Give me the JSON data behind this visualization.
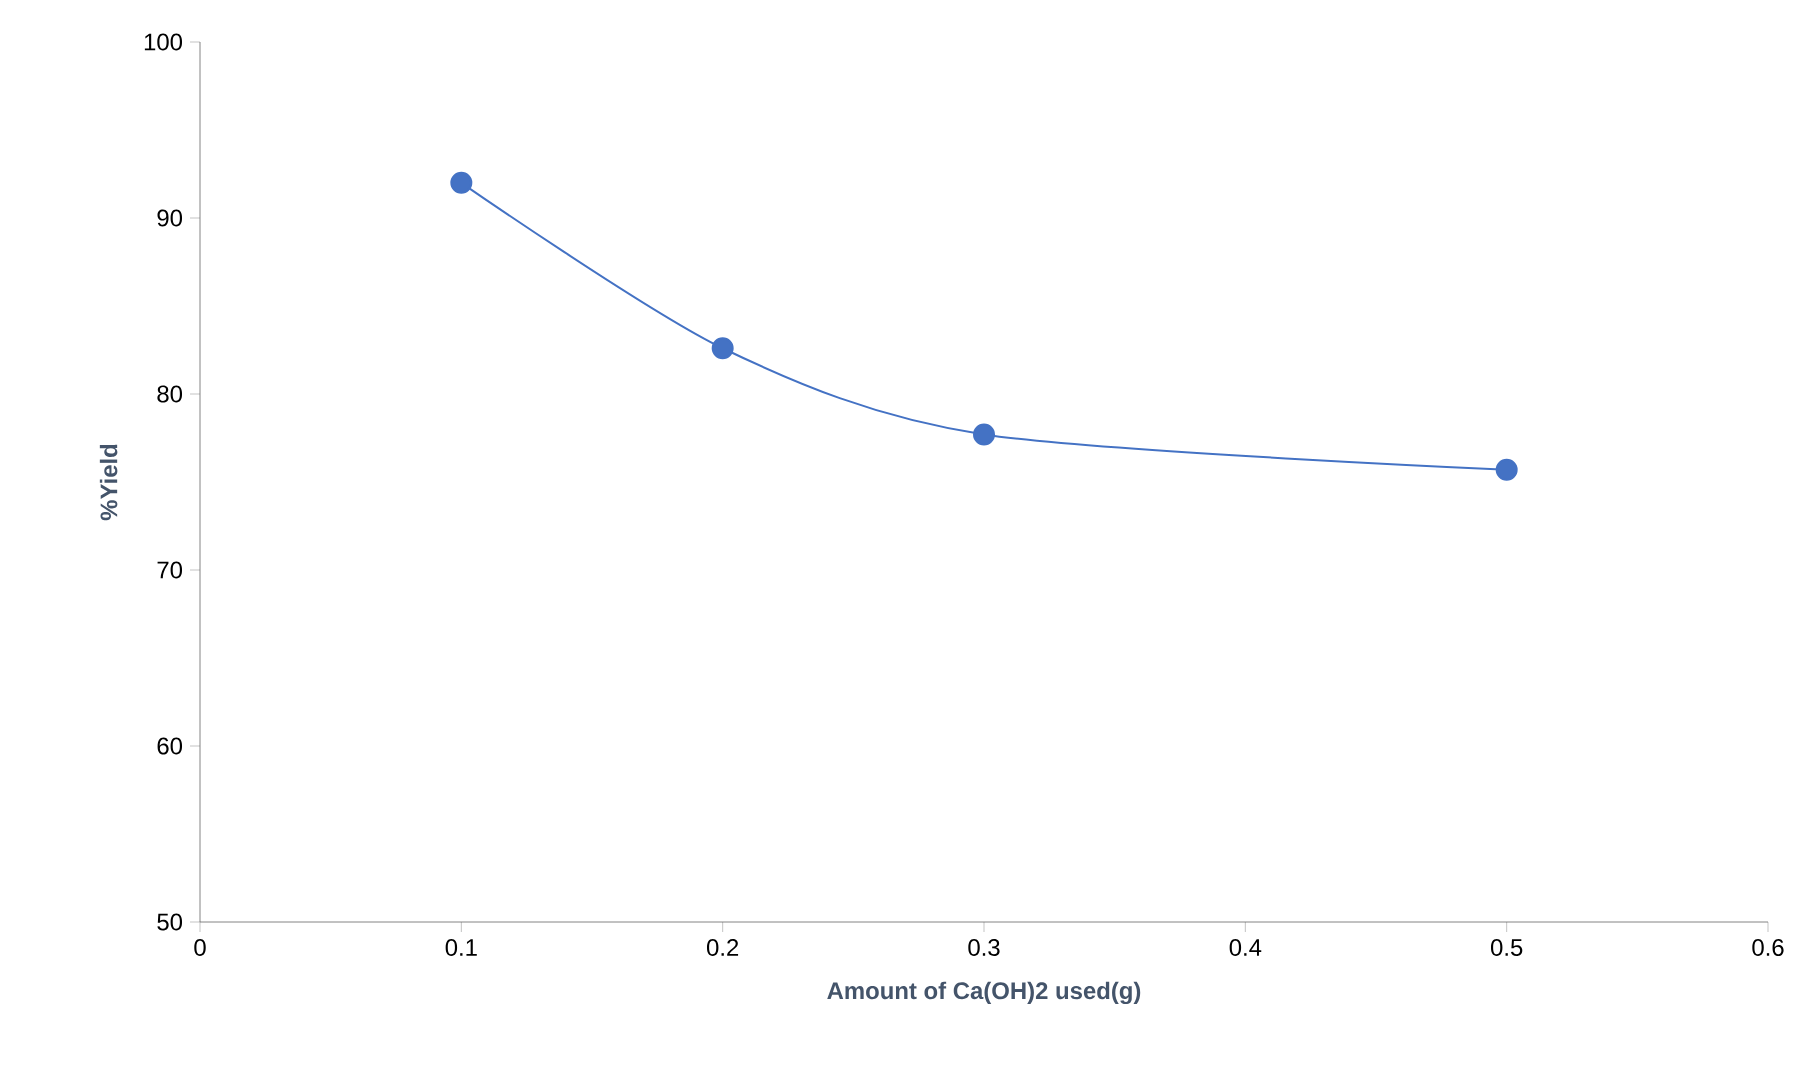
{
  "chart_data": {
    "type": "line",
    "xlabel": "Amount of Ca(OH)2 used(g)",
    "ylabel": "%Yield",
    "x": [
      0.1,
      0.2,
      0.3,
      0.5
    ],
    "series": [
      {
        "color": "#4472c4",
        "values": [
          92.0,
          82.6,
          77.7,
          75.7
        ]
      }
    ],
    "xlim": [
      0,
      0.6
    ],
    "xticks": [
      0,
      0.1,
      0.2,
      0.3,
      0.4,
      0.5,
      0.6
    ],
    "ylim": [
      50,
      100
    ],
    "yticks": [
      50,
      60,
      70,
      80,
      90,
      100
    ],
    "marker": "circle",
    "line_style": "solid",
    "grid": false
  }
}
